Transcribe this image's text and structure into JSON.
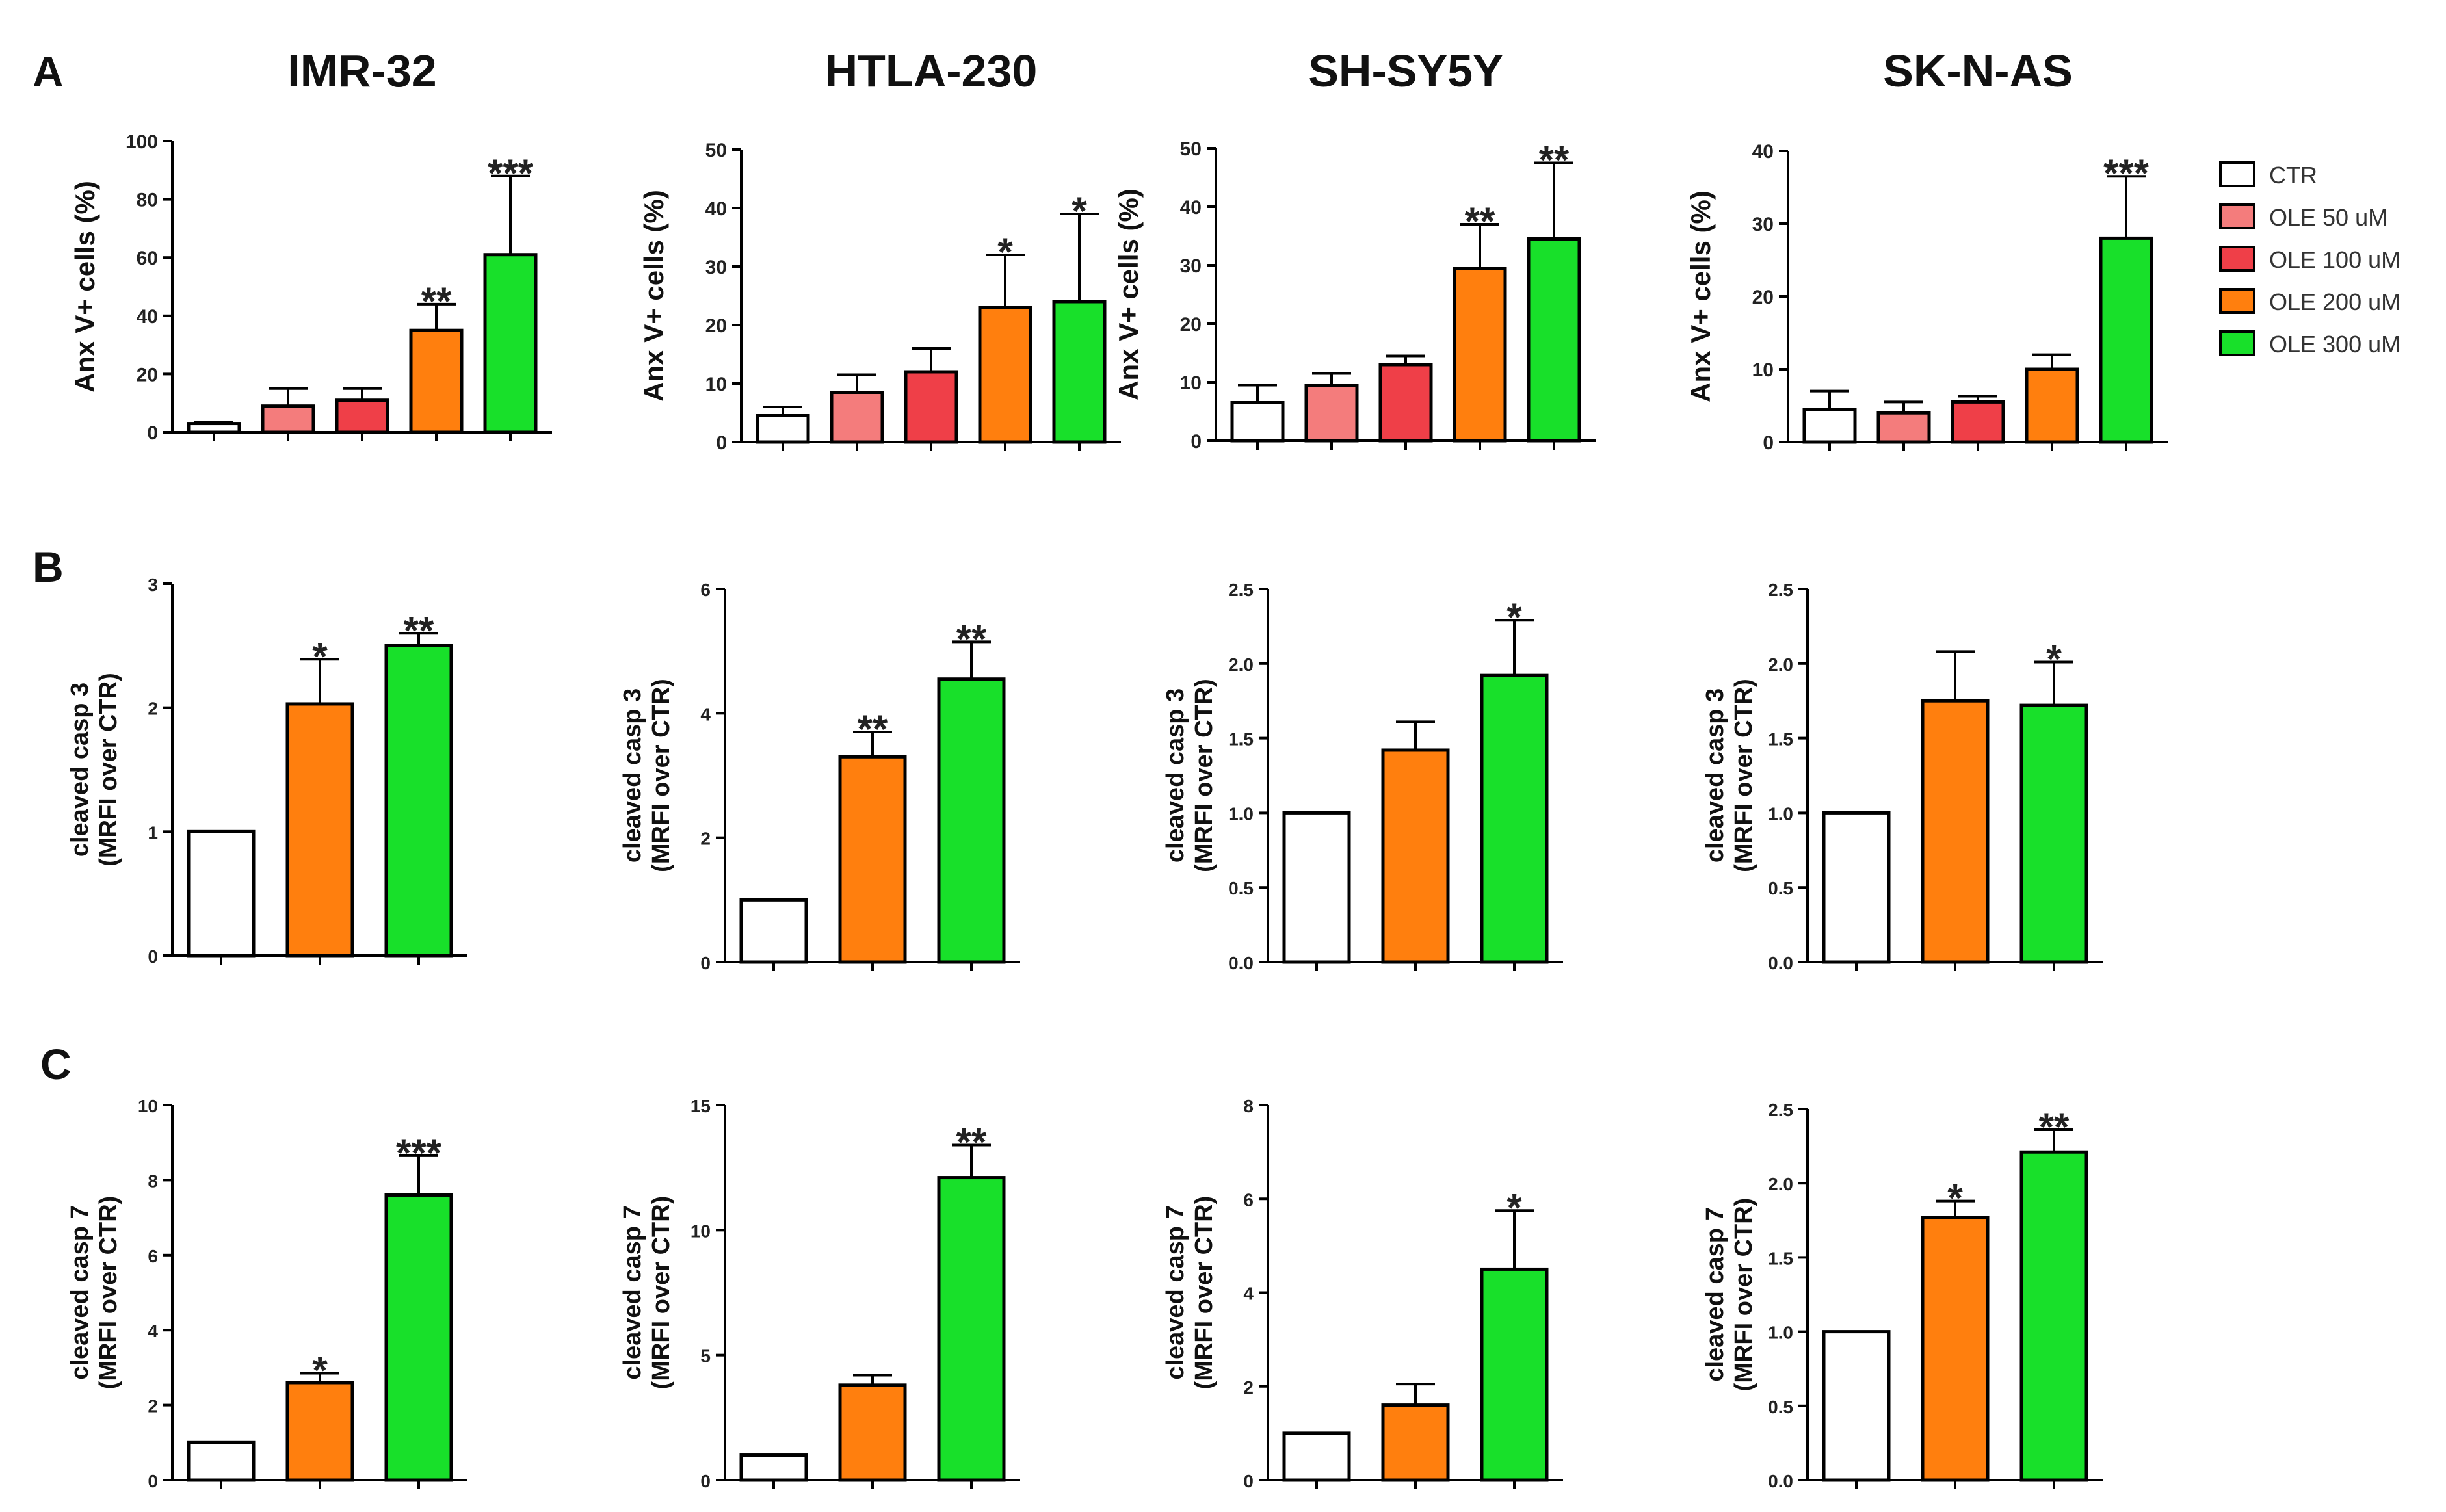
{
  "colors": {
    "CTR": "#ffffff",
    "OLE 50 uM": "#f47c7c",
    "OLE 100 uM": "#ef3f48",
    "OLE 200 uM": "#ff7f0e",
    "OLE 300 uM": "#18e02a"
  },
  "panels": [
    {
      "label": "A"
    },
    {
      "label": "B"
    },
    {
      "label": "C"
    }
  ],
  "legend": {
    "entries": [
      "CTR",
      "OLE 50 uM",
      "OLE 100 uM",
      "OLE 200 uM",
      "OLE 300 uM"
    ]
  },
  "chart_data": [
    {
      "type": "bar",
      "row": 0,
      "col": 0,
      "title": "IMR-32",
      "ylabel": "Anx V+ cells (%)",
      "ylim": [
        0,
        100
      ],
      "yticks": [
        0,
        20,
        40,
        60,
        80,
        100
      ],
      "groups": [
        "CTR",
        "OLE 50 uM",
        "OLE 100 uM",
        "OLE 200 uM",
        "OLE 300 uM"
      ],
      "values": [
        3,
        9,
        11,
        35,
        61
      ],
      "errors": [
        0.5,
        6,
        4,
        9,
        27
      ],
      "stars": [
        "",
        "",
        "",
        "**",
        "***"
      ]
    },
    {
      "type": "bar",
      "row": 0,
      "col": 1,
      "title": "HTLA-230",
      "ylabel": "Anx V+ cells (%)",
      "ylim": [
        0,
        50
      ],
      "yticks": [
        0,
        10,
        20,
        30,
        40,
        50
      ],
      "groups": [
        "CTR",
        "OLE 50 uM",
        "OLE 100 uM",
        "OLE 200 uM",
        "OLE 300 uM"
      ],
      "values": [
        4.5,
        8.5,
        12,
        23,
        24
      ],
      "errors": [
        1.5,
        3,
        4,
        9,
        15
      ],
      "stars": [
        "",
        "",
        "",
        "*",
        "*"
      ]
    },
    {
      "type": "bar",
      "row": 0,
      "col": 2,
      "title": "SH-SY5Y",
      "ylabel": "Anx V+ cells (%)",
      "ylim": [
        0,
        50
      ],
      "yticks": [
        0,
        10,
        20,
        30,
        40,
        50
      ],
      "groups": [
        "CTR",
        "OLE 50 uM",
        "OLE 100 uM",
        "OLE 200 uM",
        "OLE 300 uM"
      ],
      "values": [
        6.5,
        9.5,
        13,
        29.5,
        34.5
      ],
      "errors": [
        3,
        2,
        1.5,
        7.5,
        13
      ],
      "stars": [
        "",
        "",
        "",
        "**",
        "**"
      ]
    },
    {
      "type": "bar",
      "row": 0,
      "col": 3,
      "title": "SK-N-AS",
      "ylabel": "Anx V+ cells (%)",
      "ylim": [
        0,
        40
      ],
      "yticks": [
        0,
        10,
        20,
        30,
        40
      ],
      "groups": [
        "CTR",
        "OLE 50 uM",
        "OLE 100 uM",
        "OLE 200 uM",
        "OLE 300 uM"
      ],
      "values": [
        4.5,
        4,
        5.5,
        10,
        28
      ],
      "errors": [
        2.5,
        1.5,
        0.8,
        2,
        8.5
      ],
      "stars": [
        "",
        "",
        "",
        "",
        "***"
      ]
    },
    {
      "type": "bar",
      "row": 1,
      "col": 0,
      "title": "",
      "ylabel": "cleaved casp 3|(MRFI over CTR)",
      "ylim": [
        0,
        3
      ],
      "yticks": [
        0,
        1,
        2,
        3
      ],
      "groups": [
        "CTR",
        "OLE 200 uM",
        "OLE 300 uM"
      ],
      "values": [
        1,
        2.03,
        2.5
      ],
      "errors": [
        0,
        0.36,
        0.1
      ],
      "stars": [
        "",
        "*",
        "**"
      ]
    },
    {
      "type": "bar",
      "row": 1,
      "col": 1,
      "title": "",
      "ylabel": "cleaved casp 3|(MRFI over CTR)",
      "ylim": [
        0,
        6
      ],
      "yticks": [
        0,
        2,
        4,
        6
      ],
      "groups": [
        "CTR",
        "OLE 200 uM",
        "OLE 300 uM"
      ],
      "values": [
        1,
        3.3,
        4.55
      ],
      "errors": [
        0,
        0.4,
        0.6
      ],
      "stars": [
        "",
        "**",
        "**"
      ]
    },
    {
      "type": "bar",
      "row": 1,
      "col": 2,
      "title": "",
      "ylabel": "cleaved casp 3|(MRFI over CTR)",
      "ylim": [
        0,
        2.5
      ],
      "yticks": [
        "0.0",
        "0.5",
        "1.0",
        "1.5",
        "2.0",
        "2.5"
      ],
      "groups": [
        "CTR",
        "OLE 200 uM",
        "OLE 300 uM"
      ],
      "values": [
        1,
        1.42,
        1.92
      ],
      "errors": [
        0,
        0.19,
        0.37
      ],
      "stars": [
        "",
        "",
        "*"
      ]
    },
    {
      "type": "bar",
      "row": 1,
      "col": 3,
      "title": "",
      "ylabel": "cleaved casp 3|(MRFI over CTR)",
      "ylim": [
        0,
        2.5
      ],
      "yticks": [
        "0.0",
        "0.5",
        "1.0",
        "1.5",
        "2.0",
        "2.5"
      ],
      "groups": [
        "CTR",
        "OLE 200 uM",
        "OLE 300 uM"
      ],
      "values": [
        1,
        1.75,
        1.72
      ],
      "errors": [
        0,
        0.33,
        0.29
      ],
      "stars": [
        "",
        "",
        "*"
      ]
    },
    {
      "type": "bar",
      "row": 2,
      "col": 0,
      "title": "",
      "ylabel": "cleaved casp 7|(MRFI over CTR)",
      "ylim": [
        0,
        10
      ],
      "yticks": [
        0,
        2,
        4,
        6,
        8,
        10
      ],
      "groups": [
        "CTR",
        "OLE 200 uM",
        "OLE 300 uM"
      ],
      "values": [
        1,
        2.6,
        7.6
      ],
      "errors": [
        0,
        0.25,
        1.05
      ],
      "stars": [
        "",
        "*",
        "***"
      ]
    },
    {
      "type": "bar",
      "row": 2,
      "col": 1,
      "title": "",
      "ylabel": "cleaved casp 7|(MRFI over CTR)",
      "ylim": [
        0,
        15
      ],
      "yticks": [
        0,
        5,
        10,
        15
      ],
      "groups": [
        "CTR",
        "OLE 200 uM",
        "OLE 300 uM"
      ],
      "values": [
        1,
        3.8,
        12.1
      ],
      "errors": [
        0,
        0.4,
        1.3
      ],
      "stars": [
        "",
        "",
        "**"
      ]
    },
    {
      "type": "bar",
      "row": 2,
      "col": 2,
      "title": "",
      "ylabel": "cleaved casp 7|(MRFI over CTR)",
      "ylim": [
        0,
        8
      ],
      "yticks": [
        0,
        2,
        4,
        6,
        8
      ],
      "groups": [
        "CTR",
        "OLE 200 uM",
        "OLE 300 uM"
      ],
      "values": [
        1,
        1.6,
        4.5
      ],
      "errors": [
        0,
        0.45,
        1.25
      ],
      "stars": [
        "",
        "",
        "*"
      ]
    },
    {
      "type": "bar",
      "row": 2,
      "col": 3,
      "title": "",
      "ylabel": "cleaved casp 7|(MRFI over CTR)",
      "ylim": [
        0,
        2.5
      ],
      "yticks": [
        "0.0",
        "0.5",
        "1.0",
        "1.5",
        "2.0",
        "2.5"
      ],
      "groups": [
        "CTR",
        "OLE 200 uM",
        "OLE 300 uM"
      ],
      "values": [
        1,
        1.77,
        2.21
      ],
      "errors": [
        0,
        0.11,
        0.15
      ],
      "stars": [
        "",
        "*",
        "**"
      ]
    }
  ]
}
